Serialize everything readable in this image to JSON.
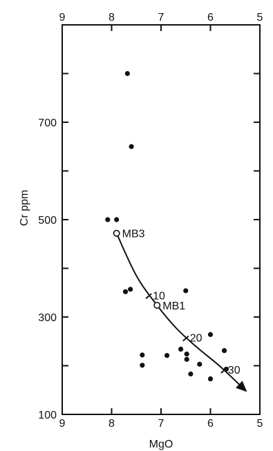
{
  "chart_data": {
    "type": "scatter",
    "xlabel": "MgO",
    "ylabel": "Cr ppm",
    "xlim": [
      9,
      5
    ],
    "ylim": [
      100,
      900
    ],
    "x_reversed": true,
    "x_tick_labels": [
      "9",
      "8",
      "7",
      "6",
      "5"
    ],
    "x_tick_values": [
      9,
      8,
      7,
      6,
      5
    ],
    "y_tick_labels": [
      "100",
      "300",
      "500",
      "700"
    ],
    "y_tick_values": [
      100,
      300,
      500,
      700
    ],
    "y_minor_ticks": [
      200,
      400,
      600,
      800
    ],
    "grid": false,
    "axis_color": "#111111",
    "samples": {
      "marker": "filled-circle",
      "x": [
        7.68,
        7.6,
        8.08,
        7.9,
        7.72,
        7.62,
        7.38,
        7.38,
        6.88,
        6.5,
        6.6,
        6.48,
        6.48,
        6.4,
        6.22,
        6.0,
        6.0,
        5.72,
        5.68
      ],
      "y": [
        800,
        650,
        500,
        500,
        352,
        357,
        222,
        201,
        221,
        354,
        234,
        224,
        213,
        183,
        203,
        264,
        173,
        231,
        193
      ]
    },
    "reference_samples": {
      "marker": "open-circle",
      "points": [
        {
          "label": "MB3",
          "x": 7.9,
          "y": 472
        },
        {
          "label": "MB1",
          "x": 7.08,
          "y": 324
        }
      ]
    },
    "fractionation_trend": {
      "style": "curved arrow",
      "x": [
        7.9,
        7.5,
        7.08,
        6.7,
        6.3,
        5.8,
        5.3
      ],
      "y": [
        472,
        385,
        324,
        278,
        240,
        198,
        150
      ],
      "tick_labels": [
        {
          "label": "10",
          "x": 7.25,
          "y": 345
        },
        {
          "label": "20",
          "x": 6.5,
          "y": 258
        },
        {
          "label": "30",
          "x": 5.73,
          "y": 192
        }
      ]
    }
  }
}
